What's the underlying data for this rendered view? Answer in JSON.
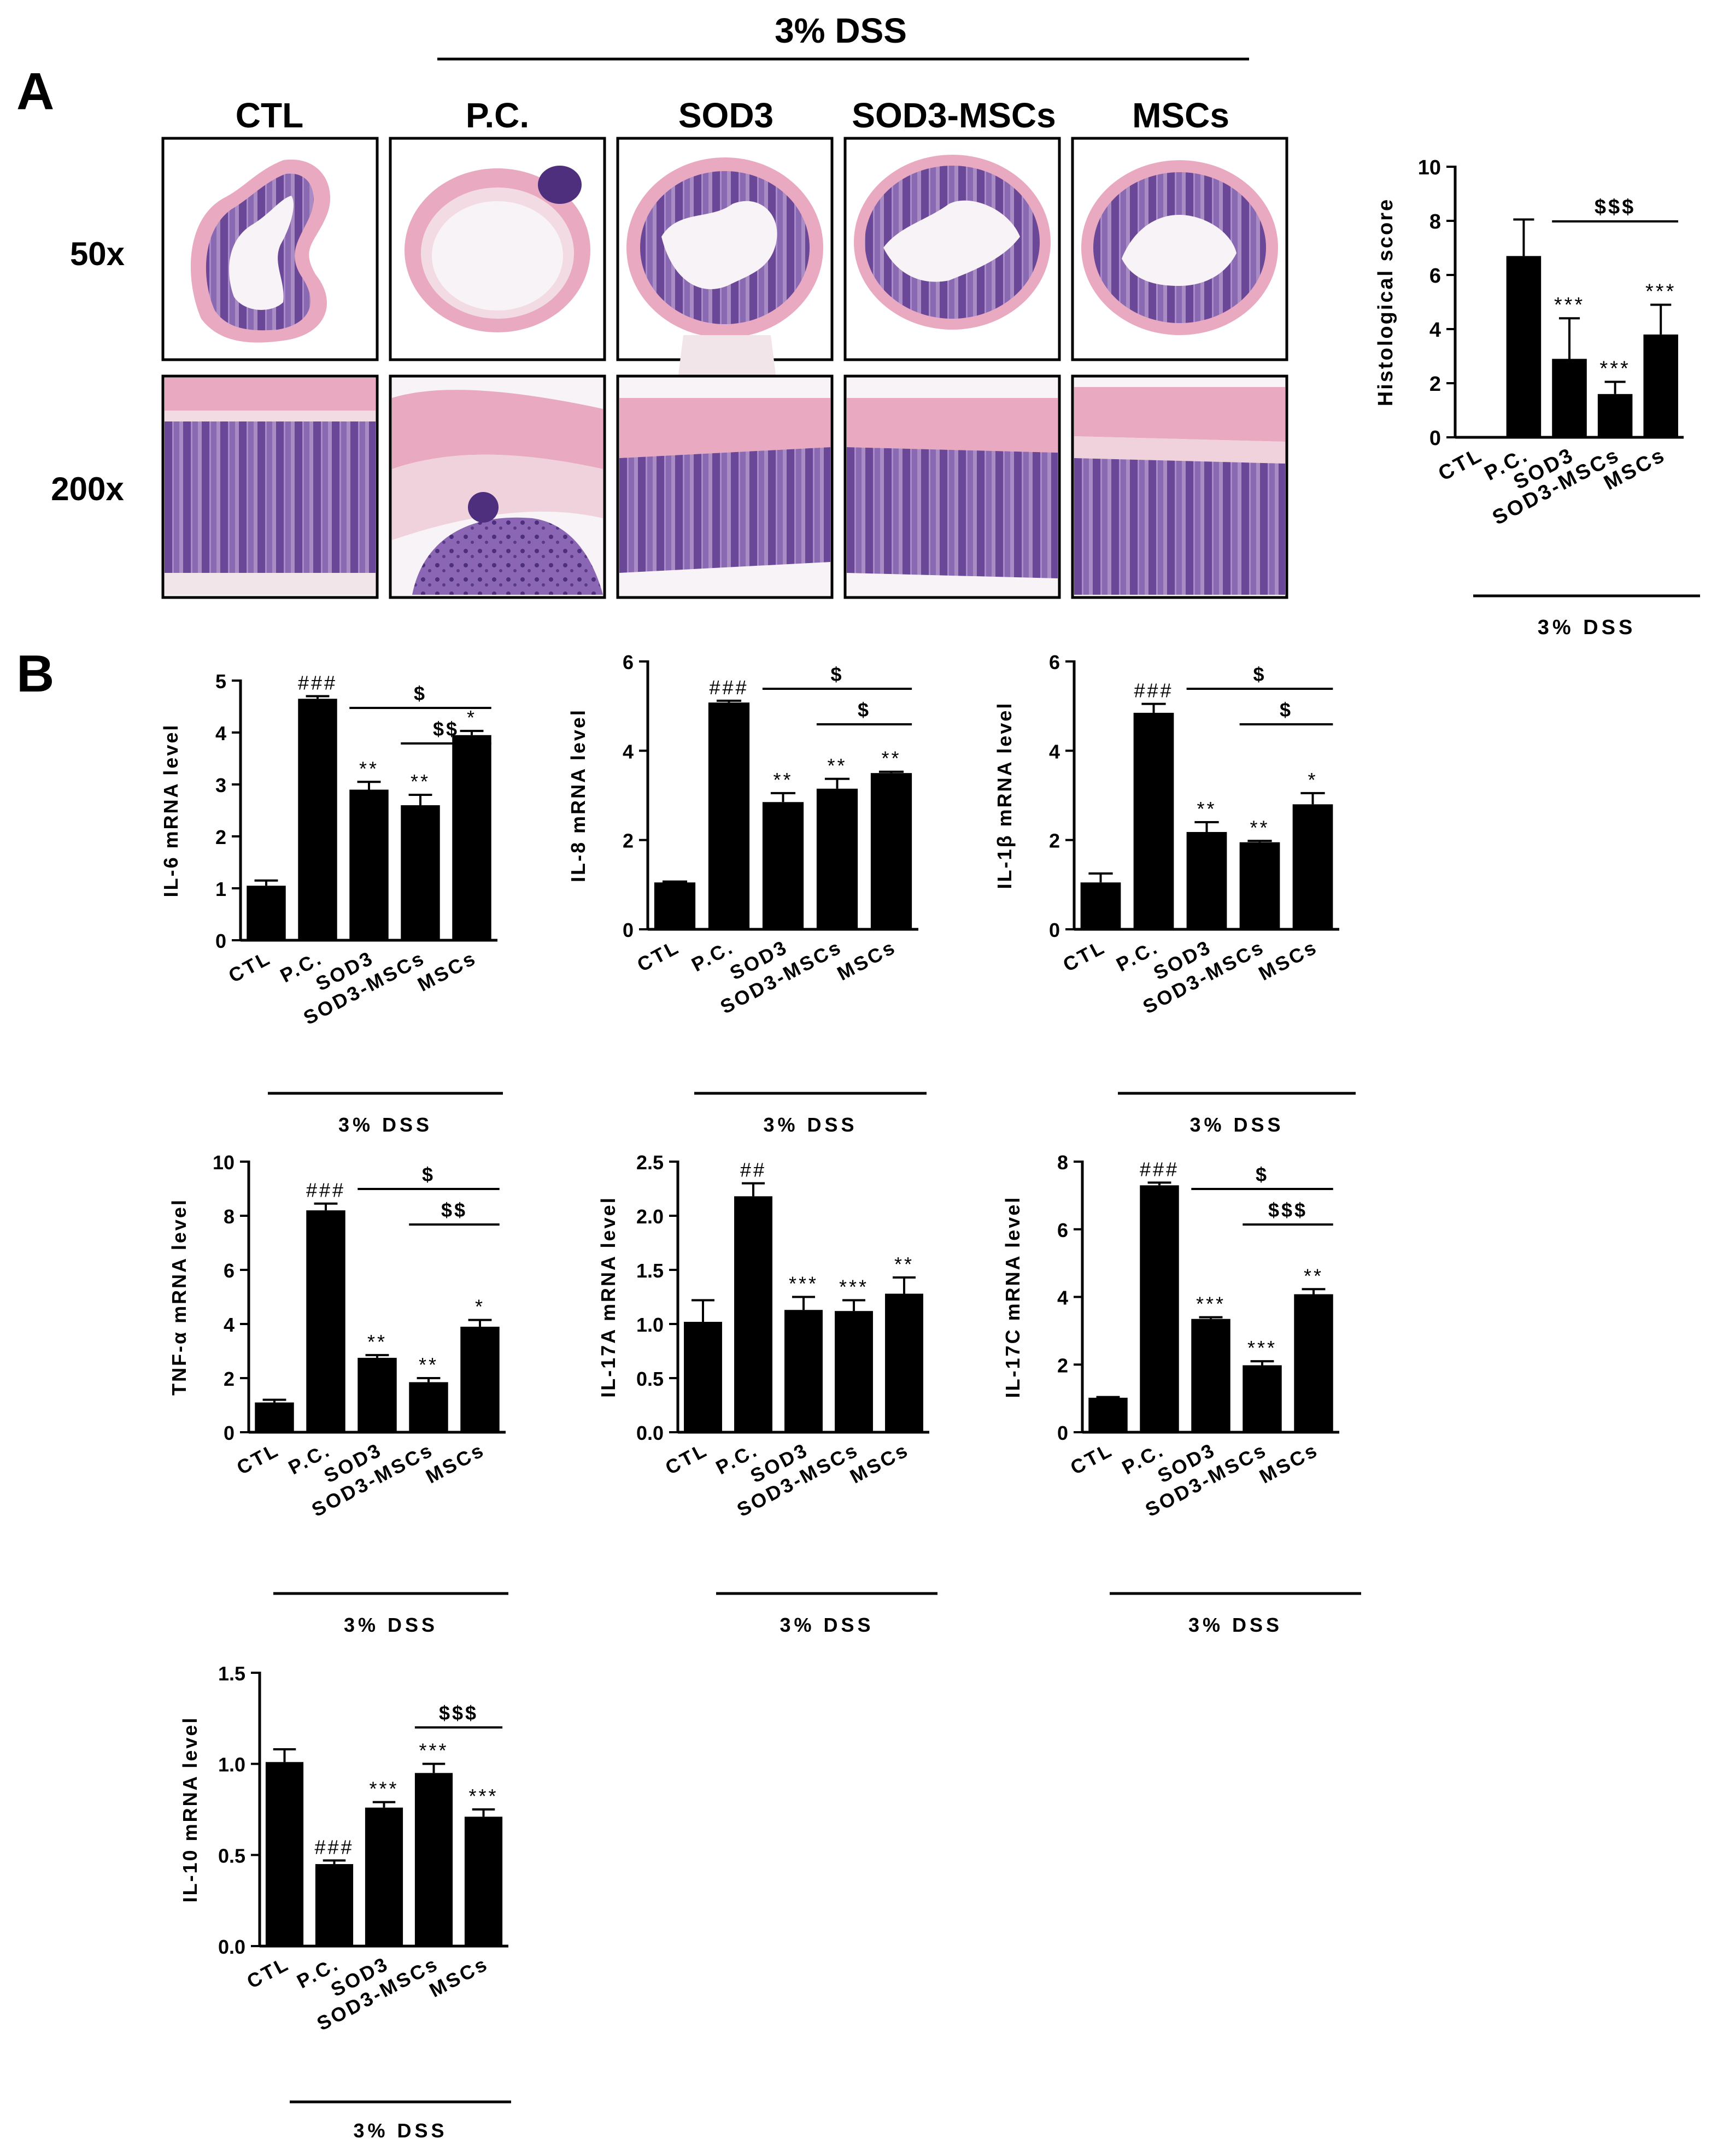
{
  "panel_a": {
    "letter": "A",
    "bracket_label": "3% DSS",
    "columns": [
      "CTL",
      "P.C.",
      "SOD3",
      "SOD3-MSCs",
      "MSCs"
    ],
    "rows": [
      "50x",
      "200x"
    ]
  },
  "panel_b": {
    "letter": "B"
  },
  "colors": {
    "bar": "#000000",
    "tissue_pink": "#e9a9c0",
    "tissue_purple": "#7d5aa6",
    "lumen": "#f7f3f6"
  },
  "chart_data": [
    {
      "id": "histology",
      "type": "bar",
      "ylabel": "Histological score",
      "ylim": [
        0,
        10
      ],
      "yticks": [
        "0",
        "2",
        "4",
        "6",
        "8",
        "10"
      ],
      "categories": [
        "CTL",
        "P.C.",
        "SOD3",
        "SOD3-MSCs",
        "MSCs"
      ],
      "values": [
        0,
        6.7,
        2.9,
        1.6,
        3.8
      ],
      "errors": [
        0,
        1.35,
        1.5,
        0.45,
        1.1
      ],
      "bar_labels": [
        "",
        "",
        "***",
        "***",
        "***"
      ],
      "brackets": [
        {
          "from": 2,
          "to": 4,
          "label": "$$$"
        }
      ],
      "group_label": "3% DSS"
    },
    {
      "id": "il6",
      "type": "bar",
      "ylabel": "IL-6 mRNA level",
      "ylim": [
        0,
        5
      ],
      "yticks": [
        "0",
        "1",
        "2",
        "3",
        "4",
        "5"
      ],
      "categories": [
        "CTL",
        "P.C.",
        "SOD3",
        "SOD3-MSCs",
        "MSCs"
      ],
      "values": [
        1.05,
        4.65,
        2.9,
        2.6,
        3.95
      ],
      "errors": [
        0.1,
        0.05,
        0.15,
        0.2,
        0.08
      ],
      "bar_labels": [
        "",
        "###",
        "**",
        "**",
        "*"
      ],
      "brackets": [
        {
          "from": 2,
          "to": 4,
          "label": "$"
        },
        {
          "from": 3,
          "to": 4,
          "label": "$$"
        }
      ],
      "group_label": "3% DSS"
    },
    {
      "id": "il8",
      "type": "bar",
      "ylabel": "IL-8 mRNA level",
      "ylim": [
        0,
        6
      ],
      "yticks": [
        "0",
        "2",
        "4",
        "6"
      ],
      "categories": [
        "CTL",
        "P.C.",
        "SOD3",
        "SOD3-MSCs",
        "MSCs"
      ],
      "values": [
        1.05,
        5.08,
        2.85,
        3.15,
        3.5
      ],
      "errors": [
        0.02,
        0.04,
        0.2,
        0.22,
        0.03
      ],
      "bar_labels": [
        "",
        "###",
        "**",
        "**",
        "**"
      ],
      "brackets": [
        {
          "from": 2,
          "to": 4,
          "label": "$"
        },
        {
          "from": 3,
          "to": 4,
          "label": "$"
        }
      ],
      "group_label": "3% DSS"
    },
    {
      "id": "il1b",
      "type": "bar",
      "ylabel": "IL-1β mRNA level",
      "ylim": [
        0,
        6
      ],
      "yticks": [
        "0",
        "2",
        "4",
        "6"
      ],
      "categories": [
        "CTL",
        "P.C.",
        "SOD3",
        "SOD3-MSCs",
        "MSCs"
      ],
      "values": [
        1.05,
        4.85,
        2.18,
        1.95,
        2.8
      ],
      "errors": [
        0.2,
        0.2,
        0.22,
        0.03,
        0.25
      ],
      "bar_labels": [
        "",
        "###",
        "**",
        "**",
        "*"
      ],
      "brackets": [
        {
          "from": 2,
          "to": 4,
          "label": "$"
        },
        {
          "from": 3,
          "to": 4,
          "label": "$"
        }
      ],
      "group_label": "3% DSS"
    },
    {
      "id": "tnfa",
      "type": "bar",
      "ylabel": "TNF-α mRNA level",
      "ylim": [
        0,
        10
      ],
      "yticks": [
        "0",
        "2",
        "4",
        "6",
        "8",
        "10"
      ],
      "categories": [
        "CTL",
        "P.C.",
        "SOD3",
        "SOD3-MSCs",
        "MSCs"
      ],
      "values": [
        1.1,
        8.2,
        2.75,
        1.85,
        3.9
      ],
      "errors": [
        0.1,
        0.25,
        0.1,
        0.15,
        0.25
      ],
      "bar_labels": [
        "",
        "###",
        "**",
        "**",
        "*"
      ],
      "brackets": [
        {
          "from": 2,
          "to": 4,
          "label": "$"
        },
        {
          "from": 3,
          "to": 4,
          "label": "$$"
        }
      ],
      "group_label": "3% DSS"
    },
    {
      "id": "il17a",
      "type": "bar",
      "ylabel": "IL-17A mRNA level",
      "ylim": [
        0,
        2.5
      ],
      "yticks": [
        "0.0",
        "0.5",
        "1.0",
        "1.5",
        "2.0",
        "2.5"
      ],
      "categories": [
        "CTL",
        "P.C.",
        "SOD3",
        "SOD3-MSCs",
        "MSCs"
      ],
      "values": [
        1.02,
        2.18,
        1.13,
        1.12,
        1.28
      ],
      "errors": [
        0.2,
        0.12,
        0.12,
        0.1,
        0.15
      ],
      "bar_labels": [
        "",
        "##",
        "***",
        "***",
        "**"
      ],
      "brackets": [],
      "group_label": "3% DSS"
    },
    {
      "id": "il17c",
      "type": "bar",
      "ylabel": "IL-17C mRNA level",
      "ylim": [
        0,
        8
      ],
      "yticks": [
        "0",
        "2",
        "4",
        "6",
        "8"
      ],
      "categories": [
        "CTL",
        "P.C.",
        "SOD3",
        "SOD3-MSCs",
        "MSCs"
      ],
      "values": [
        1.02,
        7.3,
        3.35,
        1.98,
        4.08
      ],
      "errors": [
        0.02,
        0.08,
        0.05,
        0.12,
        0.15
      ],
      "bar_labels": [
        "",
        "###",
        "***",
        "***",
        "**"
      ],
      "brackets": [
        {
          "from": 2,
          "to": 4,
          "label": "$"
        },
        {
          "from": 3,
          "to": 4,
          "label": "$$$"
        }
      ],
      "group_label": "3% DSS"
    },
    {
      "id": "il10",
      "type": "bar",
      "ylabel": "IL-10 mRNA level",
      "ylim": [
        0,
        1.5
      ],
      "yticks": [
        "0.0",
        "0.5",
        "1.0",
        "1.5"
      ],
      "categories": [
        "CTL",
        "P.C.",
        "SOD3",
        "SOD3-MSCs",
        "MSCs"
      ],
      "values": [
        1.01,
        0.45,
        0.76,
        0.95,
        0.71
      ],
      "errors": [
        0.07,
        0.02,
        0.03,
        0.05,
        0.04
      ],
      "bar_labels": [
        "",
        "###",
        "***",
        "***",
        "***"
      ],
      "brackets": [
        {
          "from": 3,
          "to": 4,
          "label": "$$$"
        }
      ],
      "group_label": "3% DSS"
    }
  ]
}
